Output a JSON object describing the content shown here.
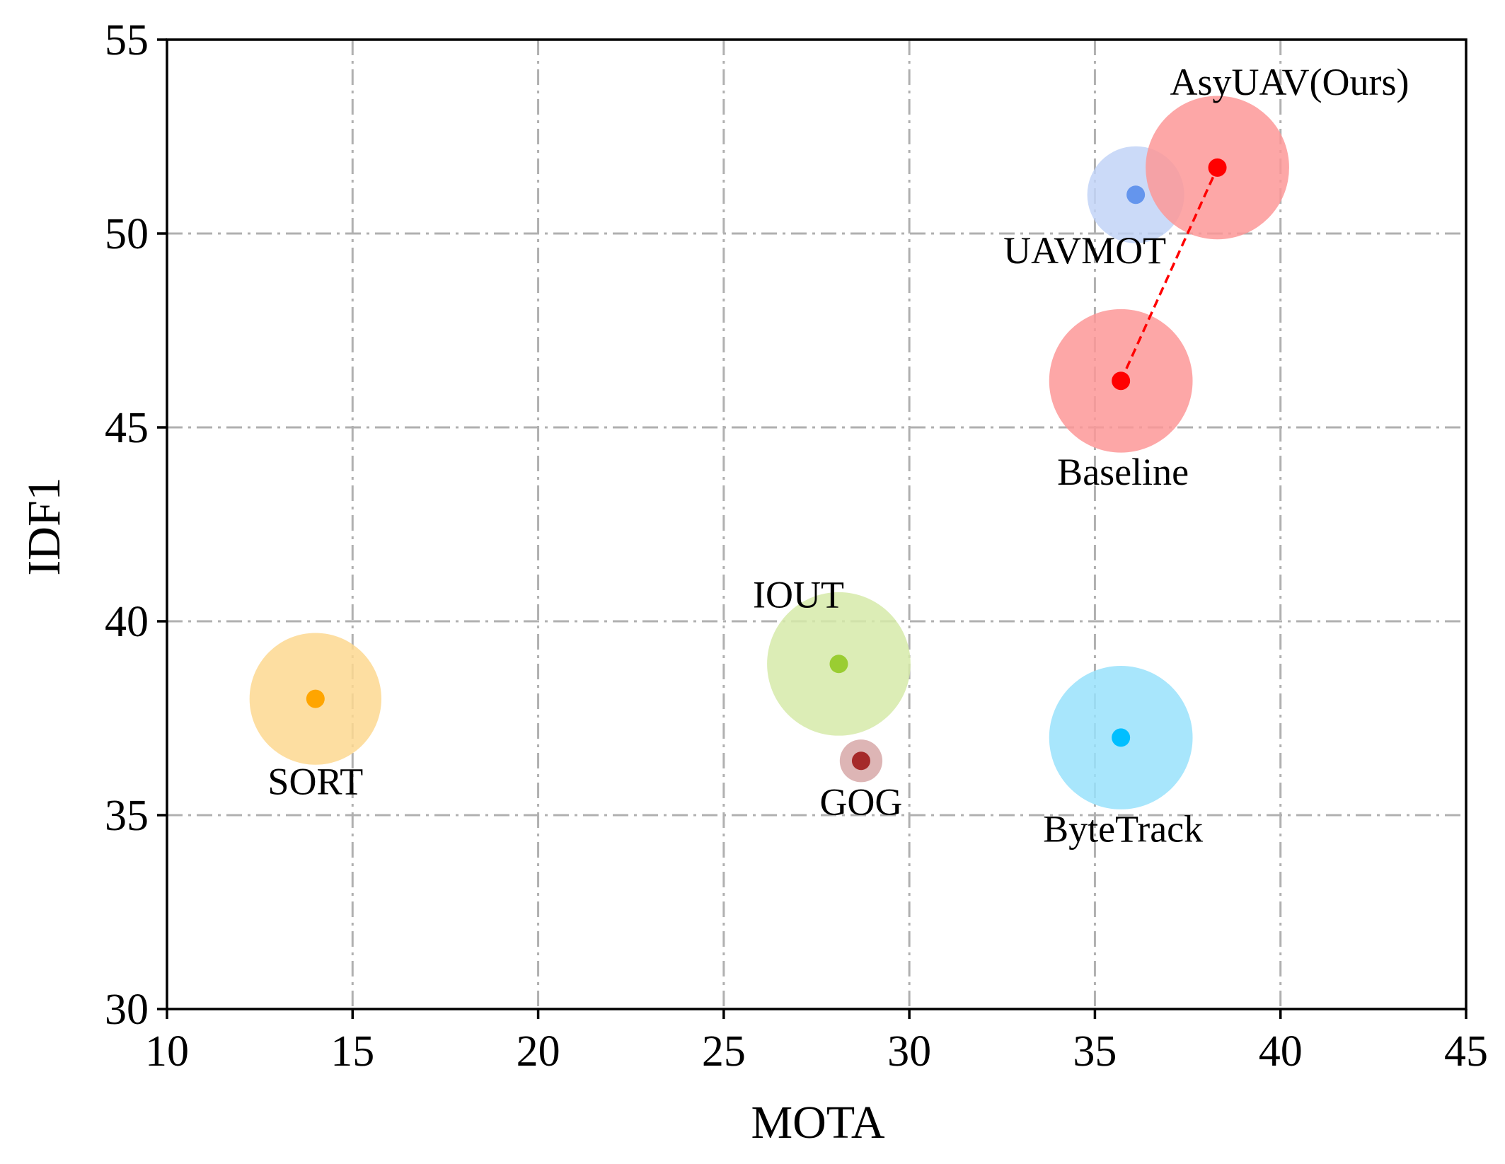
{
  "chart_data": {
    "type": "scatter",
    "title": "",
    "xlabel": "MOTA",
    "ylabel": "IDF1",
    "xlim": [
      10,
      45
    ],
    "ylim": [
      30,
      55
    ],
    "xticks": [
      10,
      15,
      20,
      25,
      30,
      35,
      40,
      45
    ],
    "yticks": [
      30,
      35,
      40,
      45,
      50,
      55
    ],
    "xtick_labels": [
      "10",
      "15",
      "20",
      "25",
      "30",
      "35",
      "40",
      "45"
    ],
    "ytick_labels": [
      "30",
      "35",
      "40",
      "45",
      "50",
      "55"
    ],
    "grid": true,
    "points": [
      {
        "name": "SORT",
        "x": 14.0,
        "y": 38.0,
        "bubble_radius": 1.7,
        "color": "#ffa500",
        "bubble_color": "#fdd891",
        "label_position": "below"
      },
      {
        "name": "IOUT",
        "x": 28.1,
        "y": 38.9,
        "bubble_radius": 1.85,
        "color": "#9acd32",
        "bubble_color": "#d6eaa9",
        "label_position": "above-left"
      },
      {
        "name": "GOG",
        "x": 28.7,
        "y": 36.4,
        "bubble_radius": 0.55,
        "color": "#a52a2a",
        "bubble_color": "#d7a8a8",
        "label_position": "below"
      },
      {
        "name": "ByteTrack",
        "x": 35.7,
        "y": 37.0,
        "bubble_radius": 1.85,
        "color": "#00bfff",
        "bubble_color": "#99e2fc",
        "label_position": "below"
      },
      {
        "name": "Baseline",
        "x": 35.7,
        "y": 46.2,
        "bubble_radius": 1.85,
        "color": "#ff0000",
        "bubble_color": "#fd9898",
        "label_position": "below"
      },
      {
        "name": "UAVMOT",
        "x": 36.1,
        "y": 51.0,
        "bubble_radius": 1.25,
        "color": "#6495ed",
        "bubble_color": "#c2d4f7",
        "label_position": "below-left"
      },
      {
        "name": "AsyUAV(Ours)",
        "x": 38.3,
        "y": 51.7,
        "bubble_radius": 1.85,
        "color": "#ff0000",
        "bubble_color": "#fd9898",
        "label_position": "above-right"
      }
    ],
    "connector": {
      "from": "Baseline",
      "to": "AsyUAV(Ours)",
      "style": "dashed",
      "color": "#ff0000"
    }
  }
}
